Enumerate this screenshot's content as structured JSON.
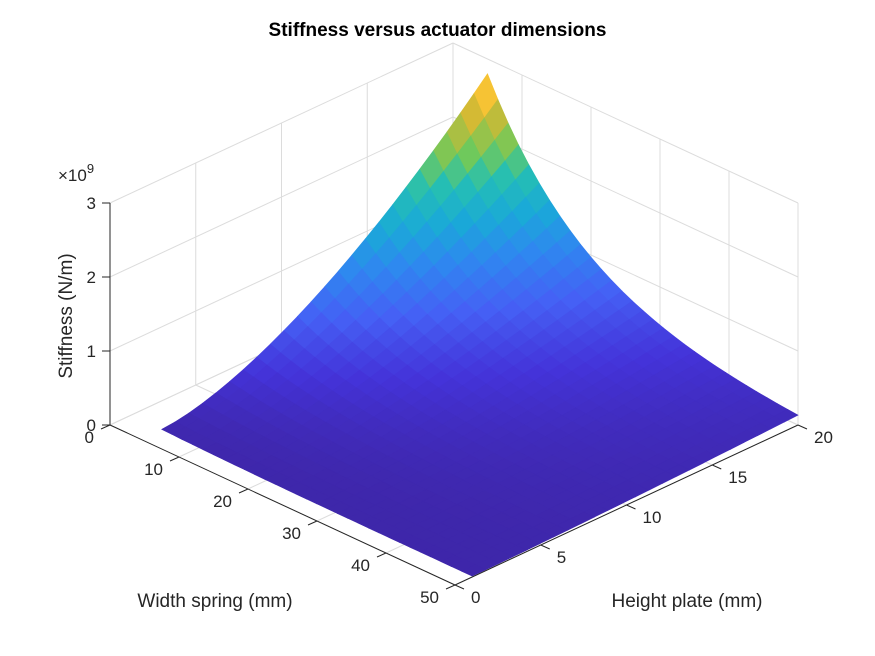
{
  "chart_data": {
    "type": "surface",
    "title": "Stiffness versus actuator dimensions",
    "xlabel": "Width spring (mm)",
    "ylabel": "Height plate (mm)",
    "zlabel": "Stiffness (N/m)",
    "z_multiplier": "×10",
    "z_multiplier_exponent": "9",
    "xlim": [
      0,
      50
    ],
    "ylim": [
      0,
      20
    ],
    "zlim": [
      0,
      3
    ],
    "x_ticks": [
      0,
      10,
      20,
      30,
      40,
      50
    ],
    "y_ticks": [
      0,
      5,
      10,
      15,
      20
    ],
    "z_ticks": [
      0,
      1,
      2,
      3
    ],
    "x_range": [
      5,
      50
    ],
    "y_range": [
      1,
      20
    ],
    "corner_values_e9": [
      {
        "x": 5,
        "y": 1,
        "z": 0.05
      },
      {
        "x": 5,
        "y": 20,
        "z": 2.8
      },
      {
        "x": 50,
        "y": 1,
        "z": 0.01
      },
      {
        "x": 50,
        "y": 20,
        "z": 0.02
      }
    ],
    "colormap": "parula",
    "grid": true
  }
}
